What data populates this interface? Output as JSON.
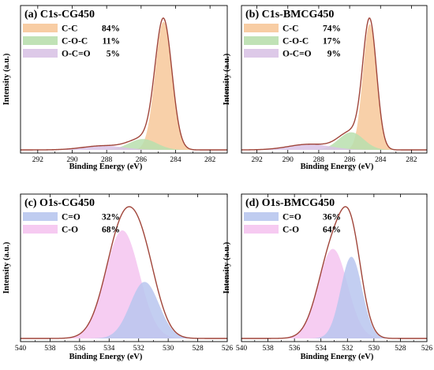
{
  "chart_data": [
    {
      "type": "area",
      "title": "(a) C1s-CG450",
      "xlabel": "Binding Energy (eV)",
      "ylabel": "Intensity (a.u.)",
      "xlim": [
        293,
        281
      ],
      "x_reversed": true,
      "xticks": [
        292,
        290,
        288,
        286,
        284,
        282
      ],
      "xtick_labels": [
        "292",
        "290",
        "288",
        "286",
        "284",
        "282"
      ],
      "yticks_shown": false,
      "legend_position": "top-left",
      "envelope_color": "#a0453a",
      "series": [
        {
          "name": "C-C",
          "percent": "84%",
          "color": "#f7c89a",
          "center": 284.7,
          "fwhm": 1.15,
          "amp": 1.0
        },
        {
          "name": "C-O-C",
          "percent": "11%",
          "color": "#b9dfae",
          "center": 285.9,
          "fwhm": 1.9,
          "amp": 0.085
        },
        {
          "name": "O-C=O",
          "percent": "5%",
          "color": "#d9c3e6",
          "center": 288.2,
          "fwhm": 2.8,
          "amp": 0.032
        }
      ]
    },
    {
      "type": "area",
      "title": "(b) C1s-BMCG450",
      "xlabel": "Binding Energy (eV)",
      "ylabel": "Intensity (a.u.)",
      "xlim": [
        293,
        281
      ],
      "x_reversed": true,
      "xticks": [
        292,
        290,
        288,
        286,
        284,
        282
      ],
      "xtick_labels": [
        "292",
        "290",
        "288",
        "286",
        "284",
        "282"
      ],
      "yticks_shown": false,
      "legend_position": "top-left",
      "envelope_color": "#a0453a",
      "series": [
        {
          "name": "C-C",
          "percent": "74%",
          "color": "#f7c89a",
          "center": 284.7,
          "fwhm": 1.05,
          "amp": 1.0
        },
        {
          "name": "C-O-C",
          "percent": "17%",
          "color": "#b9dfae",
          "center": 285.9,
          "fwhm": 1.9,
          "amp": 0.14
        },
        {
          "name": "O-C=O",
          "percent": "9%",
          "color": "#d9c3e6",
          "center": 288.6,
          "fwhm": 3.2,
          "amp": 0.045
        }
      ]
    },
    {
      "type": "area",
      "title": "(c) O1s-CG450",
      "xlabel": "Binding Energy (eV)",
      "ylabel": "Intensity (a.u.)",
      "xlim": [
        540,
        526
      ],
      "x_reversed": true,
      "xticks": [
        540,
        538,
        536,
        534,
        532,
        530,
        528,
        526
      ],
      "xtick_labels": [
        "540",
        "538",
        "536",
        "534",
        "532",
        "530",
        "528",
        "526"
      ],
      "yticks_shown": false,
      "legend_position": "top-left",
      "envelope_color": "#a0453a",
      "series": [
        {
          "name": "C=O",
          "percent": "32%",
          "color": "#b8c6ee",
          "center": 531.6,
          "fwhm": 2.3,
          "amp": 0.45
        },
        {
          "name": "C-O",
          "percent": "68%",
          "color": "#f5c4f0",
          "center": 533.1,
          "fwhm": 2.7,
          "amp": 0.86
        }
      ]
    },
    {
      "type": "area",
      "title": "(d) O1s-BMCG450",
      "xlabel": "Binding Energy (eV)",
      "ylabel": "Intensity (a.u.)",
      "xlim": [
        540,
        526
      ],
      "x_reversed": true,
      "xticks": [
        540,
        538,
        536,
        534,
        532,
        530,
        528,
        526
      ],
      "xtick_labels": [
        "540",
        "538",
        "536",
        "534",
        "532",
        "530",
        "528",
        "526"
      ],
      "yticks_shown": false,
      "legend_position": "top-left",
      "envelope_color": "#a0453a",
      "series": [
        {
          "name": "C=O",
          "percent": "36%",
          "color": "#b8c6ee",
          "center": 531.7,
          "fwhm": 1.9,
          "amp": 0.62
        },
        {
          "name": "C-O",
          "percent": "64%",
          "color": "#f5c4f0",
          "center": 533.1,
          "fwhm": 2.6,
          "amp": 0.68
        }
      ]
    }
  ]
}
